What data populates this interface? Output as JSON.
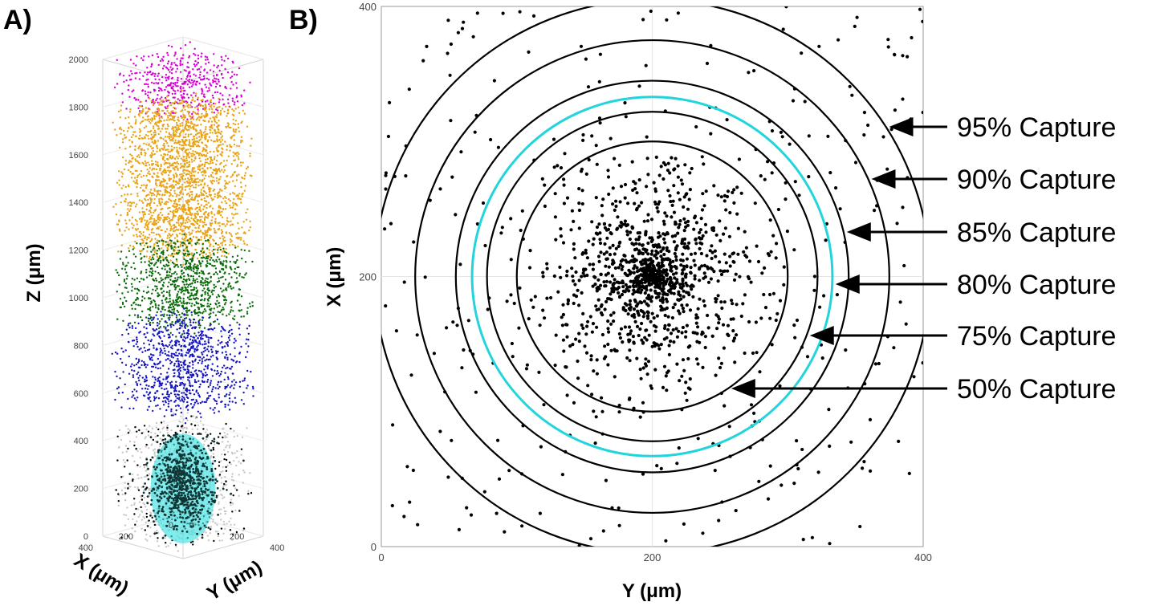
{
  "chart_data": [
    {
      "panel": "A)",
      "type": "scatter",
      "dimensions": 3,
      "xlabel": "X (μm)",
      "ylabel": "Y (μm)",
      "zlabel": "Z (μm)",
      "xlim": [
        0,
        400
      ],
      "ylim": [
        0,
        400
      ],
      "zlim": [
        0,
        2000
      ],
      "x_ticks": [
        0,
        200,
        400
      ],
      "y_ticks": [
        0,
        200,
        400
      ],
      "z_ticks": [
        0,
        200,
        400,
        600,
        800,
        1000,
        1200,
        1400,
        1600,
        1800,
        2000
      ],
      "grid": true,
      "series": [
        {
          "color": "#d400d4",
          "z_range": [
            1800,
            2000
          ],
          "count": 450
        },
        {
          "color": "#e8a317",
          "z_range": [
            1200,
            1800
          ],
          "count": 2200
        },
        {
          "color": "#0b6b0b",
          "z_range": [
            900,
            1200
          ],
          "count": 900
        },
        {
          "color": "#1515c0",
          "z_range": [
            550,
            900
          ],
          "count": 900
        },
        {
          "color": "#c8c8c8",
          "z_range": [
            0,
            450
          ],
          "count": 700
        },
        {
          "color": "#000000",
          "z_range": [
            0,
            450
          ],
          "count": 250
        },
        {
          "color": "#103535",
          "z_range": [
            20,
            420
          ],
          "count": 700,
          "center": [
            200,
            200
          ]
        }
      ],
      "capture_volume": {
        "shape": "ellipsoid",
        "color": "#3fe0e0",
        "center": [
          200,
          200,
          220
        ],
        "radii": [
          130,
          130,
          200
        ]
      }
    },
    {
      "panel": "B)",
      "type": "scatter",
      "xlabel": "Y (μm)",
      "ylabel": "X (μm)",
      "xlim": [
        0,
        400
      ],
      "ylim": [
        0,
        400
      ],
      "x_ticks": [
        0,
        200,
        400
      ],
      "y_ticks": [
        0,
        200,
        400
      ],
      "grid": true,
      "center": [
        200,
        200
      ],
      "point_count": 1500,
      "circles": [
        {
          "label": "50% Capture",
          "radius": 100,
          "color": "#000000"
        },
        {
          "label": "75% Capture",
          "radius": 122,
          "color": "#000000"
        },
        {
          "label": "80% Capture",
          "radius": 133,
          "color": "#22d4dc"
        },
        {
          "label": "85% Capture",
          "radius": 145,
          "color": "#000000"
        },
        {
          "label": "90% Capture",
          "radius": 175,
          "color": "#000000"
        },
        {
          "label": "95% Capture",
          "radius": 205,
          "color": "#000000"
        }
      ],
      "annotations": [
        {
          "text": "95% Capture",
          "target_radius": 205
        },
        {
          "text": "90% Capture",
          "target_radius": 175
        },
        {
          "text": "85% Capture",
          "target_radius": 145
        },
        {
          "text": "80% Capture",
          "target_radius": 133
        },
        {
          "text": "75% Capture",
          "target_radius": 122
        },
        {
          "text": "50% Capture",
          "target_radius": 100
        }
      ]
    }
  ]
}
